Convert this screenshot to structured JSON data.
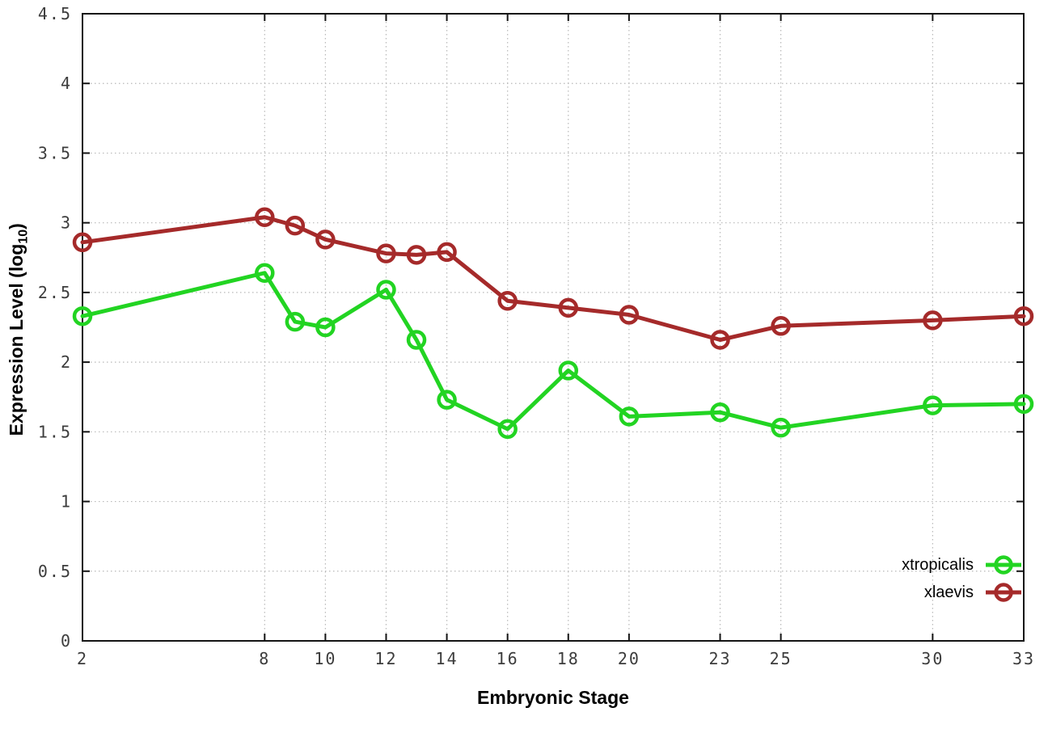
{
  "chart_data": {
    "type": "line",
    "title": "",
    "xlabel": "Embryonic Stage",
    "ylabel": {
      "prefix": "Expression Level (log",
      "sub": "10",
      "suffix": ")"
    },
    "x": [
      2,
      8,
      9,
      10,
      12,
      13,
      14,
      16,
      18,
      20,
      23,
      25,
      30,
      33
    ],
    "xlim": [
      2,
      33
    ],
    "ylim": [
      0,
      4.5
    ],
    "xticks": [
      2,
      8,
      10,
      12,
      14,
      16,
      18,
      20,
      23,
      25,
      30,
      33
    ],
    "yticks": [
      0,
      0.5,
      1,
      1.5,
      2,
      2.5,
      3,
      3.5,
      4,
      4.5
    ],
    "grid": true,
    "legend_position": "bottom-right",
    "series": [
      {
        "name": "xtropicalis",
        "color": "#22d422",
        "marker": "open-circle",
        "values": [
          2.33,
          2.64,
          2.29,
          2.25,
          2.52,
          2.16,
          1.73,
          1.52,
          1.94,
          1.61,
          1.64,
          1.53,
          1.69,
          1.7
        ]
      },
      {
        "name": "xlaevis",
        "color": "#a52a2a",
        "marker": "open-circle",
        "values": [
          2.86,
          3.04,
          2.98,
          2.88,
          2.78,
          2.77,
          2.79,
          2.44,
          2.39,
          2.34,
          2.16,
          2.26,
          2.3,
          2.33
        ]
      }
    ],
    "colors": {
      "grid": "#b8b8b8",
      "axis": "#141414",
      "tick_label": "#3c3c3c"
    }
  }
}
